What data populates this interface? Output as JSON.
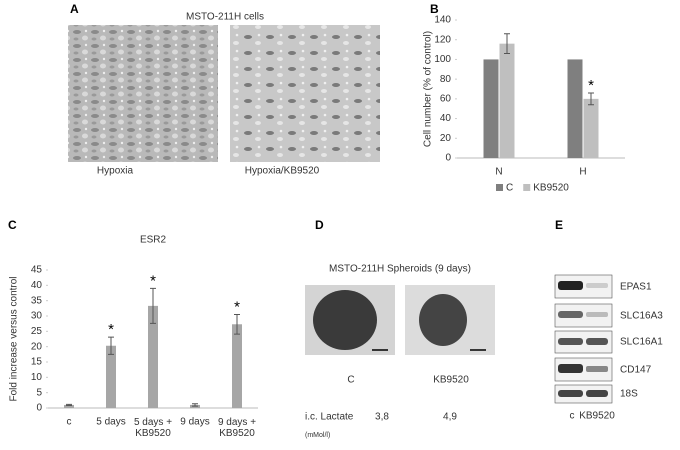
{
  "figure": {
    "A": {
      "label": "A",
      "title": "MSTO-211H cells",
      "captions": [
        "Hypoxia",
        "Hypoxia/KB9520"
      ]
    },
    "D": {
      "label": "D",
      "title": "MSTO-211H Spheroids (9 days)",
      "captions": [
        "C",
        "KB9520"
      ],
      "row_label": "i.c. Lactate",
      "row_unit": "(mMol/l)",
      "row_values": [
        "3,8",
        "4,9"
      ]
    },
    "E": {
      "label": "E",
      "genes": [
        "EPAS1",
        "SLC16A3",
        "SLC16A1",
        "CD147",
        "18S"
      ],
      "lanes": [
        "c",
        "KB9520"
      ]
    }
  },
  "chart_data": [
    {
      "panel": "B",
      "type": "bar",
      "categories": [
        "N",
        "H"
      ],
      "series": [
        {
          "name": "C",
          "color": "#7f7f7f",
          "values": [
            100,
            100
          ]
        },
        {
          "name": "KB9520",
          "color": "#bfbfbf",
          "values": [
            116,
            60
          ],
          "errors": [
            10,
            6
          ],
          "significance": [
            null,
            "*"
          ]
        }
      ],
      "ylabel": "Cell number  (% of control)",
      "ylim": [
        0,
        140
      ],
      "yticks": [
        0,
        20,
        40,
        60,
        80,
        100,
        120,
        140
      ],
      "legend": "bottom"
    },
    {
      "panel": "C",
      "type": "bar",
      "title": "ESR2",
      "categories": [
        "c",
        "5 days",
        "5 days + KB9520",
        "9 days",
        "9 days + KB9520"
      ],
      "values": [
        1,
        20.3,
        33.3,
        1,
        27.3
      ],
      "errors": [
        0.2,
        2.8,
        5.7,
        0.4,
        3.2
      ],
      "significance": [
        null,
        "*",
        "*",
        null,
        "*"
      ],
      "color": "#a6a6a6",
      "ylabel": "Fold increase versus control",
      "ylim": [
        0,
        45
      ],
      "yticks": [
        0,
        5,
        10,
        15,
        20,
        25,
        30,
        35,
        40,
        45
      ]
    }
  ]
}
